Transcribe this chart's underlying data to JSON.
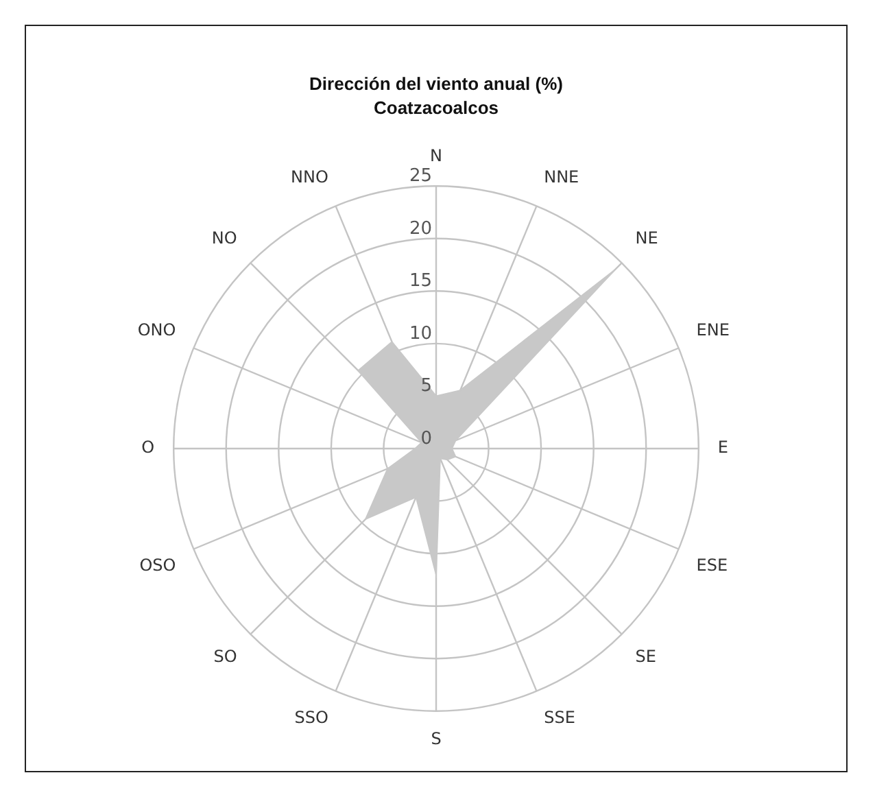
{
  "chart_data": {
    "type": "radar",
    "title": "Dirección del viento anual (%)",
    "subtitle": "Coatzacoalcos",
    "categories": [
      "N",
      "NNE",
      "NE",
      "ENE",
      "E",
      "ESE",
      "SE",
      "SSE",
      "S",
      "SSO",
      "SO",
      "OSO",
      "O",
      "ONO",
      "NO",
      "NNO"
    ],
    "series": [
      {
        "color": "#c8c8c8",
        "values": [
          5,
          6,
          24,
          2,
          1.5,
          2,
          1.5,
          1,
          12,
          5,
          9.5,
          5,
          2,
          1.5,
          10.5,
          11
        ]
      }
    ],
    "ylim": [
      0,
      25
    ],
    "yticks": [
      0,
      5,
      10,
      15,
      20,
      25
    ],
    "grid": true,
    "legend": false,
    "marker": "none"
  }
}
